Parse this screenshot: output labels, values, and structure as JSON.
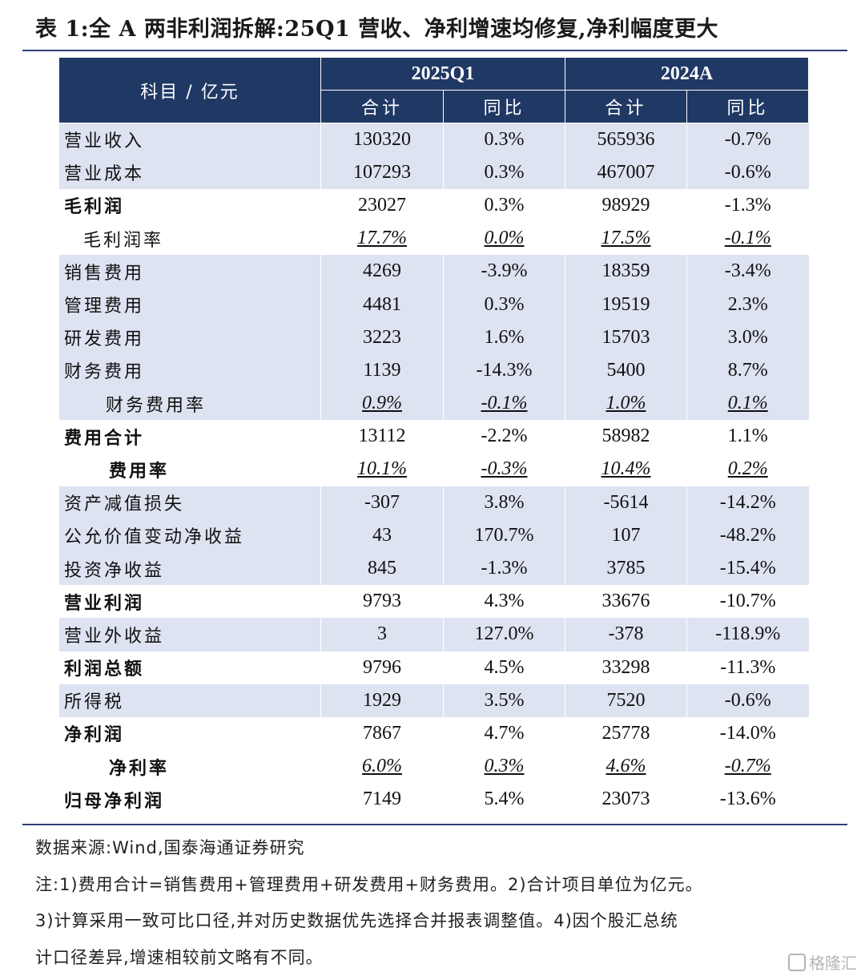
{
  "title": "表 1:全 A 两非利润拆解:25Q1 营收、净利增速均修复,净利幅度更大",
  "header": {
    "item_label": "科目 / 亿元",
    "group1": "2025Q1",
    "group2": "2024A",
    "sub_total": "合计",
    "sub_yoy": "同比"
  },
  "rows": [
    {
      "label": "营业收入",
      "v1": "130320",
      "y1": "0.3%",
      "v2": "565936",
      "y2": "-0.7%"
    },
    {
      "label": "营业成本",
      "v1": "107293",
      "y1": "0.3%",
      "v2": "467007",
      "y2": "-0.6%"
    },
    {
      "label": "毛利润",
      "v1": "23027",
      "y1": "0.3%",
      "v2": "98929",
      "y2": "-1.3%"
    },
    {
      "label": "毛利润率",
      "v1": "17.7%",
      "y1": "0.0%",
      "v2": "17.5%",
      "y2": "-0.1%"
    },
    {
      "label": "销售费用",
      "v1": "4269",
      "y1": "-3.9%",
      "v2": "18359",
      "y2": "-3.4%"
    },
    {
      "label": "管理费用",
      "v1": "4481",
      "y1": "0.3%",
      "v2": "19519",
      "y2": "2.3%"
    },
    {
      "label": "研发费用",
      "v1": "3223",
      "y1": "1.6%",
      "v2": "15703",
      "y2": "3.0%"
    },
    {
      "label": "财务费用",
      "v1": "1139",
      "y1": "-14.3%",
      "v2": "5400",
      "y2": "8.7%"
    },
    {
      "label": "财务费用率",
      "v1": "0.9%",
      "y1": "-0.1%",
      "v2": "1.0%",
      "y2": "0.1%"
    },
    {
      "label": "费用合计",
      "v1": "13112",
      "y1": "-2.2%",
      "v2": "58982",
      "y2": "1.1%"
    },
    {
      "label": "费用率",
      "v1": "10.1%",
      "y1": "-0.3%",
      "v2": "10.4%",
      "y2": "0.2%"
    },
    {
      "label": "资产减值损失",
      "v1": "-307",
      "y1": "3.8%",
      "v2": "-5614",
      "y2": "-14.2%"
    },
    {
      "label": "公允价值变动净收益",
      "v1": "43",
      "y1": "170.7%",
      "v2": "107",
      "y2": "-48.2%"
    },
    {
      "label": "投资净收益",
      "v1": "845",
      "y1": "-1.3%",
      "v2": "3785",
      "y2": "-15.4%"
    },
    {
      "label": "营业利润",
      "v1": "9793",
      "y1": "4.3%",
      "v2": "33676",
      "y2": "-10.7%"
    },
    {
      "label": "营业外收益",
      "v1": "3",
      "y1": "127.0%",
      "v2": "-378",
      "y2": "-118.9%"
    },
    {
      "label": "利润总额",
      "v1": "9796",
      "y1": "4.5%",
      "v2": "33298",
      "y2": "-11.3%"
    },
    {
      "label": "所得税",
      "v1": "1929",
      "y1": "3.5%",
      "v2": "7520",
      "y2": "-0.6%"
    },
    {
      "label": "净利润",
      "v1": "7867",
      "y1": "4.7%",
      "v2": "25778",
      "y2": "-14.0%"
    },
    {
      "label": "净利率",
      "v1": "6.0%",
      "y1": "0.3%",
      "v2": "4.6%",
      "y2": "-0.7%"
    },
    {
      "label": "归母净利润",
      "v1": "7149",
      "y1": "5.4%",
      "v2": "23073",
      "y2": "-13.6%"
    }
  ],
  "notes": {
    "source": "数据来源:Wind,国泰海通证券研究",
    "line1": "注:1)费用合计=销售费用+管理费用+研发费用+财务费用。2)合计项目单位为亿元。",
    "line2": "3)计算采用一致可比口径,并对历史数据优先选择合并报表调整值。4)因个股汇总统",
    "line3": "计口径差异,增速相较前文略有不同。"
  },
  "watermark": "格隆汇"
}
